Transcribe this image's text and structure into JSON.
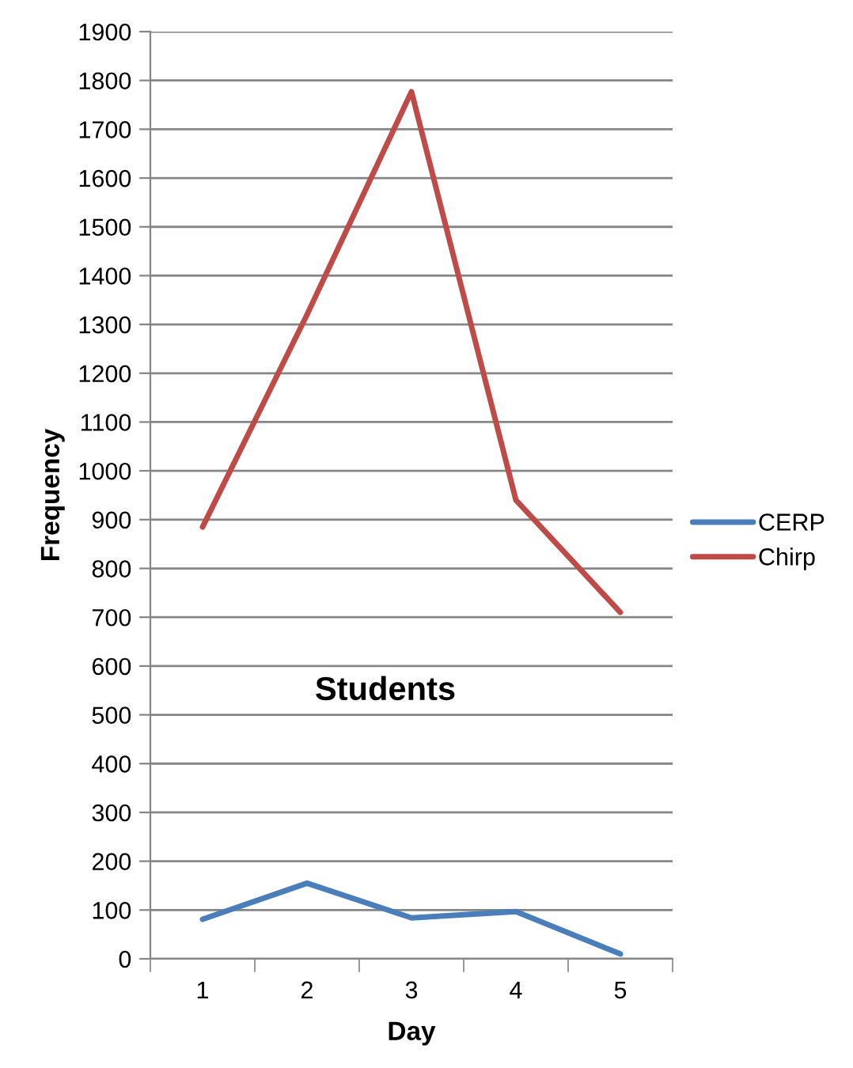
{
  "chart_data": {
    "type": "line",
    "title": "Students",
    "xlabel": "Day",
    "ylabel": "Frequency",
    "categories": [
      "1",
      "2",
      "3",
      "4",
      "5"
    ],
    "series": [
      {
        "name": "CERP",
        "color": "#4a7ebb",
        "values": [
          81,
          155,
          84,
          97,
          10
        ]
      },
      {
        "name": "Chirp",
        "color": "#be4b48",
        "values": [
          885,
          1320,
          1777,
          940,
          710
        ]
      }
    ],
    "ylim": [
      0,
      1900
    ],
    "yticks": [
      0,
      100,
      200,
      300,
      400,
      500,
      600,
      700,
      800,
      900,
      1000,
      1100,
      1200,
      1300,
      1400,
      1500,
      1600,
      1700,
      1800,
      1900
    ],
    "grid": "y",
    "legend": "right",
    "marker": "none",
    "line_style": "solid"
  }
}
